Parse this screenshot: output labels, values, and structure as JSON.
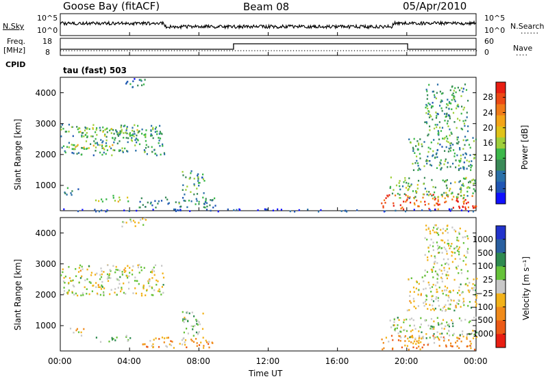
{
  "header": {
    "station": "Goose Bay (fitACF)",
    "beam": "Beam 08",
    "date": "05/Apr/2010"
  },
  "top_panels": {
    "nsky_label": "N.Sky",
    "nsky_ticks": [
      "10^5",
      "10^0"
    ],
    "nsearch_label": "N.Search",
    "nsearch_ticks": [
      "10^5",
      "10^0"
    ],
    "freq_label": "Freq.",
    "freq_unit": "[MHz]",
    "freq_ticks": [
      "18",
      "8"
    ],
    "nave_label": "Nave",
    "nave_ticks": [
      "60",
      "0"
    ],
    "cpid_label": "CPID",
    "cpid_text": "tau (fast) 503",
    "dots": "......",
    "dots_short": "...."
  },
  "chart_data": [
    {
      "type": "heatmap",
      "panel": "power",
      "ylabel": "Slant Range [km]",
      "yticks": [
        "1000",
        "2000",
        "3000",
        "4000"
      ],
      "ylim": [
        180,
        4500
      ],
      "xlim": [
        0,
        24
      ],
      "colorbar": {
        "label": "Power [dB]",
        "ticks": [
          "4",
          "8",
          "12",
          "16",
          "20",
          "24",
          "28"
        ],
        "colors": [
          "#1010ff",
          "#1f55b4",
          "#2a70a8",
          "#3a8a58",
          "#3cb84a",
          "#9fcf3a",
          "#e0c31a",
          "#f3a418",
          "#f07a18",
          "#ec4a15",
          "#e81e12"
        ]
      },
      "regions": [
        {
          "t0": 0.0,
          "t1": 6.0,
          "r0": 2000,
          "r1": 3000,
          "level": 0.35
        },
        {
          "t0": 0.5,
          "t1": 3.5,
          "r0": 2150,
          "r1": 2350,
          "level": 0.55
        },
        {
          "t0": 1.0,
          "t1": 4.5,
          "r0": 2600,
          "r1": 2900,
          "level": 0.45
        },
        {
          "t0": 0.2,
          "t1": 1.2,
          "r0": 700,
          "r1": 950,
          "level": 0.3
        },
        {
          "t0": 2.0,
          "t1": 4.0,
          "r0": 500,
          "r1": 700,
          "level": 0.5
        },
        {
          "t0": 4.5,
          "t1": 9.0,
          "r0": 300,
          "r1": 650,
          "level": 0.3
        },
        {
          "t0": 7.0,
          "t1": 8.3,
          "r0": 700,
          "r1": 1500,
          "level": 0.35
        },
        {
          "t0": 18.5,
          "t1": 24.0,
          "r0": 250,
          "r1": 750,
          "level": 0.85
        },
        {
          "t0": 19.0,
          "t1": 24.0,
          "r0": 600,
          "r1": 1300,
          "level": 0.4
        },
        {
          "t0": 20.0,
          "t1": 24.0,
          "r0": 1500,
          "r1": 2600,
          "level": 0.35
        },
        {
          "t0": 21.0,
          "t1": 23.5,
          "r0": 2600,
          "r1": 4300,
          "level": 0.35
        },
        {
          "t0": 3.5,
          "t1": 5.0,
          "r0": 4200,
          "r1": 4500,
          "level": 0.25
        },
        {
          "t0": 0.0,
          "t1": 24.0,
          "r0": 180,
          "r1": 260,
          "level": 0.1
        }
      ]
    },
    {
      "type": "heatmap",
      "panel": "velocity",
      "ylabel": "Slant Range [km]",
      "yticks": [
        "1000",
        "2000",
        "3000",
        "4000"
      ],
      "ylim": [
        180,
        4500
      ],
      "xlim": [
        0,
        24
      ],
      "xlabel": "Time UT",
      "xticks": [
        "00:00",
        "04:00",
        "08:00",
        "12:00",
        "16:00",
        "20:00",
        "00:00"
      ],
      "colorbar": {
        "label": "Velocity [m s⁻¹]",
        "ticks": [
          "1000",
          "500",
          "100",
          "25",
          "−25",
          "−100",
          "−500",
          "−1000"
        ],
        "colors": [
          "#2233cc",
          "#2a60a0",
          "#2e8a50",
          "#66c23a",
          "#c8c8c8",
          "#f2b21a",
          "#f08a1a",
          "#ec5a16",
          "#e81e12"
        ]
      },
      "regions": [
        {
          "t0": 0.0,
          "t1": 6.0,
          "r0": 2000,
          "r1": 3000,
          "level": 0.5
        },
        {
          "t0": 0.5,
          "t1": 1.5,
          "r0": 700,
          "r1": 950,
          "level": 0.55
        },
        {
          "t0": 2.0,
          "t1": 4.0,
          "r0": 500,
          "r1": 700,
          "level": 0.35
        },
        {
          "t0": 4.5,
          "t1": 9.0,
          "r0": 300,
          "r1": 650,
          "level": 0.65
        },
        {
          "t0": 7.0,
          "t1": 8.3,
          "r0": 700,
          "r1": 1500,
          "level": 0.4
        },
        {
          "t0": 18.5,
          "t1": 24.0,
          "r0": 250,
          "r1": 700,
          "level": 0.7
        },
        {
          "t0": 19.0,
          "t1": 24.0,
          "r0": 600,
          "r1": 1300,
          "level": 0.45
        },
        {
          "t0": 20.0,
          "t1": 24.0,
          "r0": 1500,
          "r1": 2600,
          "level": 0.5
        },
        {
          "t0": 21.0,
          "t1": 23.5,
          "r0": 2600,
          "r1": 4300,
          "level": 0.5
        },
        {
          "t0": 3.5,
          "t1": 5.0,
          "r0": 4200,
          "r1": 4500,
          "level": 0.5
        }
      ]
    }
  ]
}
